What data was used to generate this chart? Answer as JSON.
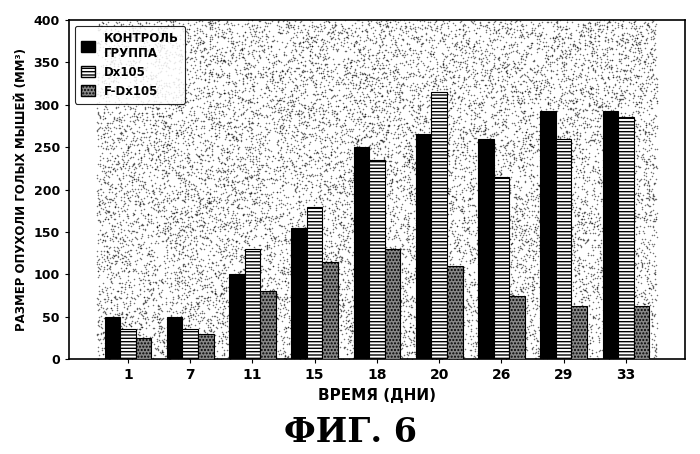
{
  "categories": [
    1,
    7,
    11,
    15,
    18,
    20,
    26,
    29,
    33
  ],
  "series": {
    "control": [
      50,
      50,
      100,
      155,
      250,
      265,
      260,
      293,
      293
    ],
    "Dx105": [
      35,
      35,
      130,
      180,
      235,
      315,
      215,
      260,
      285
    ],
    "F_Dx105": [
      25,
      30,
      80,
      115,
      130,
      110,
      75,
      63,
      63
    ]
  },
  "ylabel": "РАЗМЕР ОПУХОЛИ ГОЛЫХ МЫШЕЙ (ММ³)",
  "xlabel": "ВРЕМЯ (ДНИ)",
  "title": "ФИГ. 6",
  "legend_labels": [
    "КОНТРОЛЬ\nГРУППА",
    "Dx105",
    "F-Dx105"
  ],
  "ylim": [
    0,
    400
  ],
  "yticks": [
    0,
    50,
    100,
    150,
    200,
    250,
    300,
    350,
    400
  ],
  "bar_width": 0.25,
  "fig_bg": "#ffffff",
  "plot_bg": "#ffffff",
  "control_color": "#000000",
  "dx105_facecolor": "#ffffff",
  "fdx105_facecolor": "#888888",
  "noise_density": 18000,
  "noise_alpha": 0.55
}
